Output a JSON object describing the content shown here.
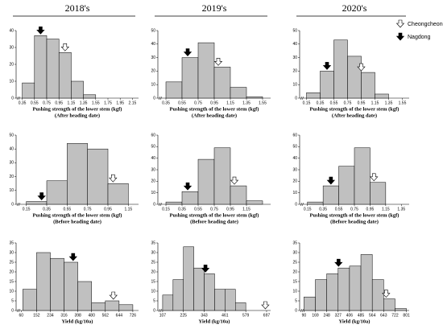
{
  "headers": [
    "2018's",
    "2019's",
    "2020's"
  ],
  "legend": [
    {
      "name": "Cheongcheong",
      "fill": "#ffffff"
    },
    {
      "name": "Nagdong",
      "fill": "#000000"
    }
  ],
  "chart_data": [
    {
      "type": "histogram",
      "xlabel": [
        "Pushing strength of the lower stem (kgf)",
        "(After heading date)"
      ],
      "color": "#c0c0c0",
      "bins": [
        0.35,
        0.55,
        0.75,
        0.95,
        1.15,
        1.35,
        1.55
      ],
      "values": [
        9,
        37,
        35,
        27,
        10,
        2
      ],
      "xlim": [
        0.25,
        2.25
      ],
      "xticks": [
        0.35,
        0.55,
        0.75,
        0.95,
        1.15,
        1.35,
        1.55,
        1.75,
        1.95,
        2.15
      ],
      "ylim": [
        0,
        40
      ],
      "yticks": [
        0,
        10,
        20,
        30,
        40
      ],
      "markers": [
        1.05,
        0.65
      ]
    },
    {
      "type": "histogram",
      "xlabel": [
        "Pushing strength of the lower stem (kgf)",
        "(After heading date)"
      ],
      "color": "#c0c0c0",
      "bins": [
        0.35,
        0.55,
        0.75,
        0.95,
        1.15,
        1.35,
        1.55
      ],
      "values": [
        12,
        30,
        41,
        23,
        8,
        1
      ],
      "xlim": [
        0.25,
        1.65
      ],
      "xticks": [
        0.35,
        0.55,
        0.75,
        0.95,
        1.15,
        1.35,
        1.55
      ],
      "ylim": [
        0,
        50
      ],
      "yticks": [
        0,
        10,
        20,
        30,
        40,
        50
      ],
      "markers": [
        1.0,
        0.62
      ]
    },
    {
      "type": "histogram",
      "xlabel": [
        "Pushing strength of the lower stem (kgf)",
        "(After heading date)"
      ],
      "color": "#c0c0c0",
      "bins": [
        0.15,
        0.35,
        0.55,
        0.75,
        0.95,
        1.15,
        1.35
      ],
      "values": [
        4,
        20,
        43,
        31,
        19,
        3
      ],
      "xlim": [
        0.05,
        1.65
      ],
      "xticks": [
        0.15,
        0.35,
        0.55,
        0.75,
        0.95,
        1.15,
        1.35,
        1.55
      ],
      "ylim": [
        0,
        50
      ],
      "yticks": [
        0,
        10,
        20,
        30,
        40,
        50
      ],
      "markers": [
        0.95,
        0.45
      ]
    },
    {
      "type": "histogram",
      "xlabel": [
        "Pushing strength of the lower stem (kgf)",
        "(Before heading date)"
      ],
      "color": "#c0c0c0",
      "bins": [
        0.15,
        0.35,
        0.55,
        0.75,
        0.95,
        1.15
      ],
      "values": [
        2,
        17,
        44,
        40,
        15
      ],
      "xlim": [
        0.05,
        1.25
      ],
      "xticks": [
        0.15,
        0.35,
        0.55,
        0.75,
        0.95,
        1.15
      ],
      "ylim": [
        0,
        50
      ],
      "yticks": [
        0,
        10,
        20,
        30,
        40,
        50
      ],
      "markers": [
        1.0,
        0.3
      ]
    },
    {
      "type": "histogram",
      "xlabel": [
        "Pushing strength of the lower stem (kgf)",
        "(Before heading date)"
      ],
      "color": "#c0c0c0",
      "bins": [
        0.15,
        0.35,
        0.55,
        0.75,
        0.95,
        1.15,
        1.35
      ],
      "values": [
        2,
        11,
        39,
        49,
        16,
        3
      ],
      "xlim": [
        0.05,
        1.45
      ],
      "xticks": [
        0.15,
        0.35,
        0.55,
        0.75,
        0.95,
        1.15
      ],
      "ylim": [
        0,
        60
      ],
      "yticks": [
        0,
        10,
        20,
        30,
        40,
        50,
        60
      ],
      "markers": [
        1.0,
        0.42
      ]
    },
    {
      "type": "histogram",
      "xlabel": [
        "Pushing strength of the lower stem (kgf)",
        "(Before heading date)"
      ],
      "color": "#c0c0c0",
      "bins": [
        0.15,
        0.35,
        0.55,
        0.75,
        0.95,
        1.15
      ],
      "values": [
        2,
        16,
        33,
        49,
        19
      ],
      "xlim": [
        0.05,
        1.45
      ],
      "xticks": [
        0.15,
        0.35,
        0.55,
        0.75,
        0.95,
        1.15,
        1.35
      ],
      "ylim": [
        0,
        60
      ],
      "yticks": [
        0,
        10,
        20,
        30,
        40,
        50,
        60
      ],
      "markers": [
        1.0,
        0.45
      ]
    },
    {
      "type": "histogram",
      "xlabel": [
        "Yield (kg/10a)"
      ],
      "color": "#c0c0c0",
      "bins": [
        70,
        152,
        234,
        316,
        398,
        480,
        562,
        644,
        726
      ],
      "values": [
        11,
        30,
        27,
        25,
        15,
        4,
        5,
        3
      ],
      "xlim": [
        30,
        760
      ],
      "xticks": [
        60,
        152,
        234,
        316,
        398,
        480,
        562,
        644,
        726
      ],
      "ylim": [
        0,
        35
      ],
      "yticks": [
        0,
        5,
        10,
        15,
        20,
        25,
        30,
        35
      ],
      "markers": [
        610,
        370
      ]
    },
    {
      "type": "histogram",
      "xlabel": [
        "Yield (kg/10a)"
      ],
      "color": "#c0c0c0",
      "bins": [
        107,
        166,
        225,
        284,
        343,
        402,
        461,
        520,
        579,
        638
      ],
      "values": [
        8,
        16,
        33,
        22,
        19,
        11,
        11,
        4,
        0
      ],
      "xlim": [
        80,
        720
      ],
      "xticks": [
        107,
        225,
        343,
        461,
        579,
        697
      ],
      "ylim": [
        0,
        35
      ],
      "yticks": [
        0,
        5,
        10,
        15,
        20,
        25,
        30,
        35
      ],
      "markers": [
        690,
        350
      ]
    },
    {
      "type": "histogram",
      "xlabel": [
        "Yield (kg/10a)"
      ],
      "color": "#c0c0c0",
      "bins": [
        90,
        169,
        248,
        327,
        406,
        485,
        564,
        643,
        722,
        801
      ],
      "values": [
        7,
        16,
        19,
        22,
        23,
        29,
        16,
        6,
        1
      ],
      "xlim": [
        60,
        820
      ],
      "xticks": [
        90,
        169,
        248,
        327,
        406,
        485,
        564,
        643,
        722,
        801
      ],
      "ylim": [
        0,
        35
      ],
      "yticks": [
        0,
        5,
        10,
        15,
        20,
        25,
        30,
        35
      ],
      "markers": [
        660,
        330
      ]
    }
  ]
}
